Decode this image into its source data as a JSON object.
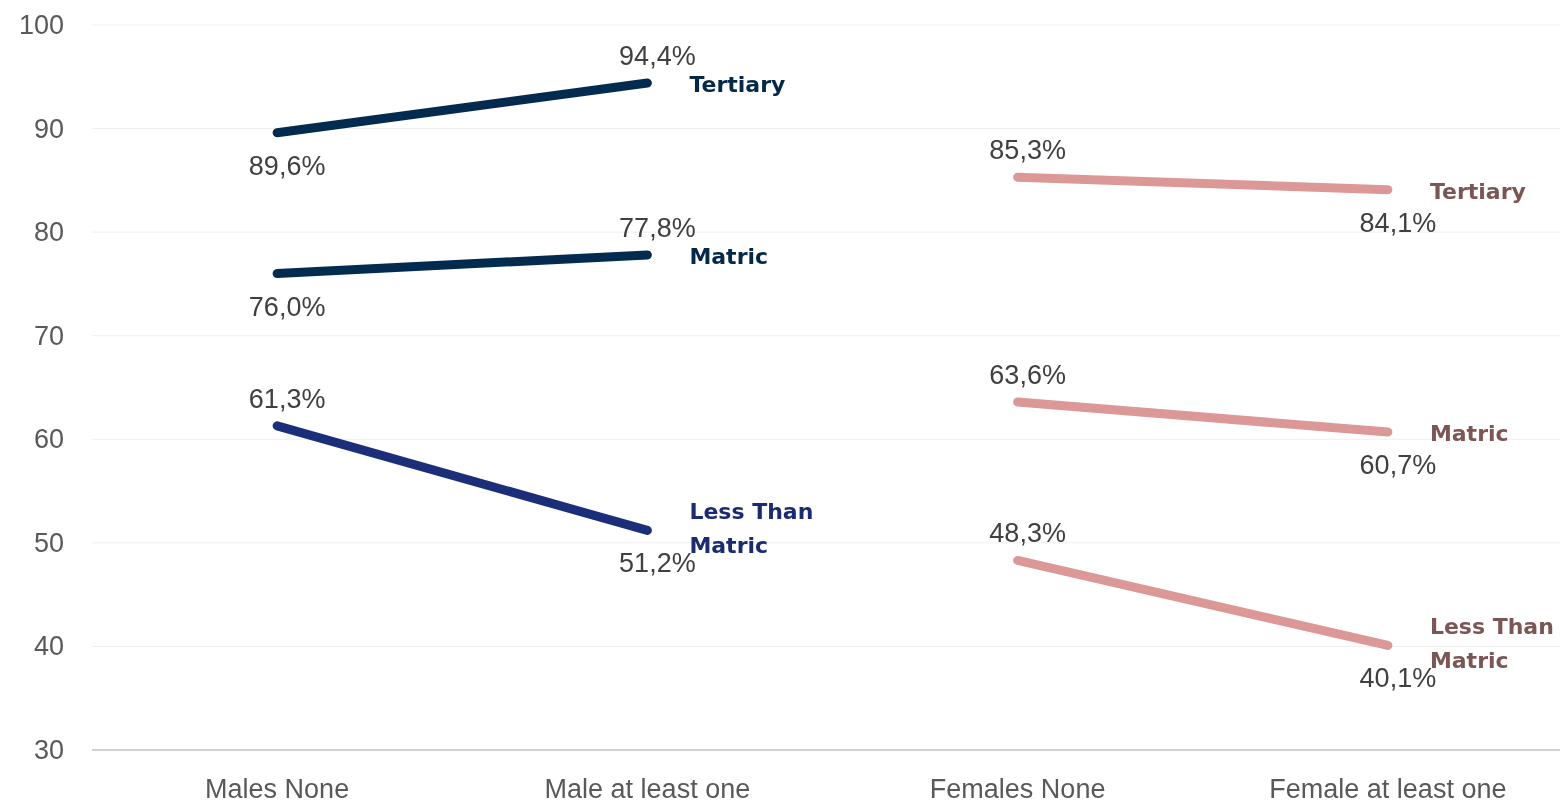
{
  "chart_data": {
    "type": "line",
    "categories": [
      "Males None",
      "Male at least one",
      "Females None",
      "Female at least one"
    ],
    "series": [
      {
        "name": "Tertiary",
        "color": "#032b50",
        "values": [
          89.6,
          94.4,
          null,
          null
        ],
        "value_labels": [
          "89,6%",
          "94,4%",
          null,
          null
        ]
      },
      {
        "name": "Matric",
        "color": "#032b50",
        "values": [
          76.0,
          77.8,
          null,
          null
        ],
        "value_labels": [
          "76,0%",
          "77,8%",
          null,
          null
        ]
      },
      {
        "name": "Less Than Matric",
        "color": "#1b2e7a",
        "values": [
          61.3,
          51.2,
          null,
          null
        ],
        "value_labels": [
          "61,3%",
          "51,2%",
          null,
          null
        ]
      },
      {
        "name": "Tertiary",
        "color": "#dc9897",
        "values": [
          null,
          null,
          85.3,
          84.1
        ],
        "value_labels": [
          null,
          null,
          "85,3%",
          "84,1%"
        ]
      },
      {
        "name": "Matric",
        "color": "#dc9897",
        "values": [
          null,
          null,
          63.6,
          60.7
        ],
        "value_labels": [
          null,
          null,
          "63,6%",
          "60,7%"
        ]
      },
      {
        "name": "Less Than Matric",
        "color": "#dc9897",
        "values": [
          null,
          null,
          48.3,
          40.1
        ],
        "value_labels": [
          null,
          null,
          "48,3%",
          "40,1%"
        ]
      }
    ],
    "ylim": [
      30,
      100
    ],
    "yticks": [
      30,
      40,
      50,
      60,
      70,
      80,
      90,
      100
    ],
    "grid": "y",
    "marker": "none",
    "line_style": "solid"
  }
}
